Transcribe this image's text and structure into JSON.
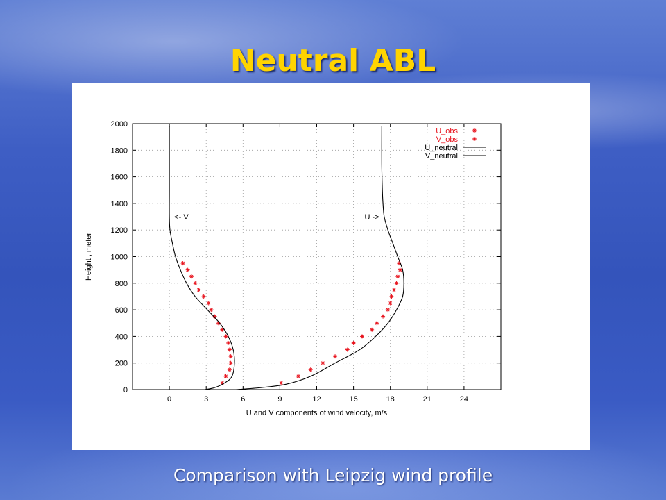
{
  "slide": {
    "title": "Neutral ABL",
    "caption": "Comparison with Leipzig wind profile"
  },
  "colors": {
    "title": "#ffd400",
    "obs": "#e8141e",
    "model": "#000000"
  },
  "chart_data": {
    "type": "line",
    "title": "",
    "xlabel": "U and V components of wind velocity, m/s",
    "ylabel": "Height , meter",
    "xlim": [
      -3,
      27
    ],
    "ylim": [
      0,
      2000
    ],
    "xticks": [
      0,
      3,
      6,
      9,
      12,
      15,
      18,
      21,
      24
    ],
    "yticks": [
      0,
      200,
      400,
      600,
      800,
      1000,
      1200,
      1400,
      1600,
      1800,
      2000
    ],
    "grid": true,
    "legend_position": "top-right",
    "annotations": [
      {
        "text": "<- V",
        "x": 0.4,
        "y": 1300
      },
      {
        "text": "U ->",
        "x": 15.9,
        "y": 1300
      }
    ],
    "series": [
      {
        "name": "U_obs",
        "style": "points",
        "color": "#e8141e",
        "points": [
          [
            9.1,
            50
          ],
          [
            10.5,
            100
          ],
          [
            11.5,
            150
          ],
          [
            12.5,
            200
          ],
          [
            13.5,
            250
          ],
          [
            14.5,
            300
          ],
          [
            15.0,
            350
          ],
          [
            15.7,
            400
          ],
          [
            16.5,
            450
          ],
          [
            16.9,
            500
          ],
          [
            17.4,
            550
          ],
          [
            17.8,
            600
          ],
          [
            18.0,
            650
          ],
          [
            18.1,
            700
          ],
          [
            18.3,
            750
          ],
          [
            18.5,
            800
          ],
          [
            18.6,
            850
          ],
          [
            18.8,
            900
          ],
          [
            18.7,
            950
          ]
        ]
      },
      {
        "name": "V_obs",
        "style": "points",
        "color": "#e8141e",
        "points": [
          [
            4.3,
            50
          ],
          [
            4.6,
            100
          ],
          [
            4.9,
            150
          ],
          [
            5.0,
            200
          ],
          [
            5.0,
            250
          ],
          [
            4.9,
            300
          ],
          [
            4.8,
            350
          ],
          [
            4.6,
            400
          ],
          [
            4.3,
            450
          ],
          [
            4.0,
            500
          ],
          [
            3.7,
            550
          ],
          [
            3.4,
            600
          ],
          [
            3.2,
            650
          ],
          [
            2.8,
            700
          ],
          [
            2.4,
            750
          ],
          [
            2.1,
            800
          ],
          [
            1.8,
            850
          ],
          [
            1.5,
            900
          ],
          [
            1.1,
            950
          ]
        ]
      },
      {
        "name": "U_neutral",
        "style": "line",
        "color": "#000000",
        "points": [
          [
            5.4,
            0
          ],
          [
            7.5,
            15
          ],
          [
            9.5,
            40
          ],
          [
            11.5,
            100
          ],
          [
            13.5,
            200
          ],
          [
            15.5,
            300
          ],
          [
            16.8,
            400
          ],
          [
            17.8,
            500
          ],
          [
            18.5,
            600
          ],
          [
            19.0,
            700
          ],
          [
            19.1,
            800
          ],
          [
            19.0,
            900
          ],
          [
            18.6,
            1000
          ],
          [
            18.2,
            1100
          ],
          [
            17.8,
            1200
          ],
          [
            17.5,
            1300
          ],
          [
            17.4,
            1400
          ],
          [
            17.35,
            1500
          ],
          [
            17.3,
            1700
          ],
          [
            17.3,
            1980
          ]
        ]
      },
      {
        "name": "V_neutral",
        "style": "line",
        "color": "#000000",
        "points": [
          [
            2.9,
            0
          ],
          [
            3.7,
            15
          ],
          [
            4.5,
            50
          ],
          [
            5.1,
            100
          ],
          [
            5.3,
            200
          ],
          [
            5.2,
            300
          ],
          [
            4.8,
            400
          ],
          [
            4.1,
            500
          ],
          [
            3.1,
            600
          ],
          [
            2.1,
            700
          ],
          [
            1.4,
            800
          ],
          [
            0.9,
            900
          ],
          [
            0.5,
            1000
          ],
          [
            0.25,
            1100
          ],
          [
            0.05,
            1200
          ],
          [
            0.0,
            1300
          ],
          [
            0.0,
            1500
          ],
          [
            0.0,
            1700
          ],
          [
            0.0,
            1980
          ]
        ]
      }
    ]
  }
}
